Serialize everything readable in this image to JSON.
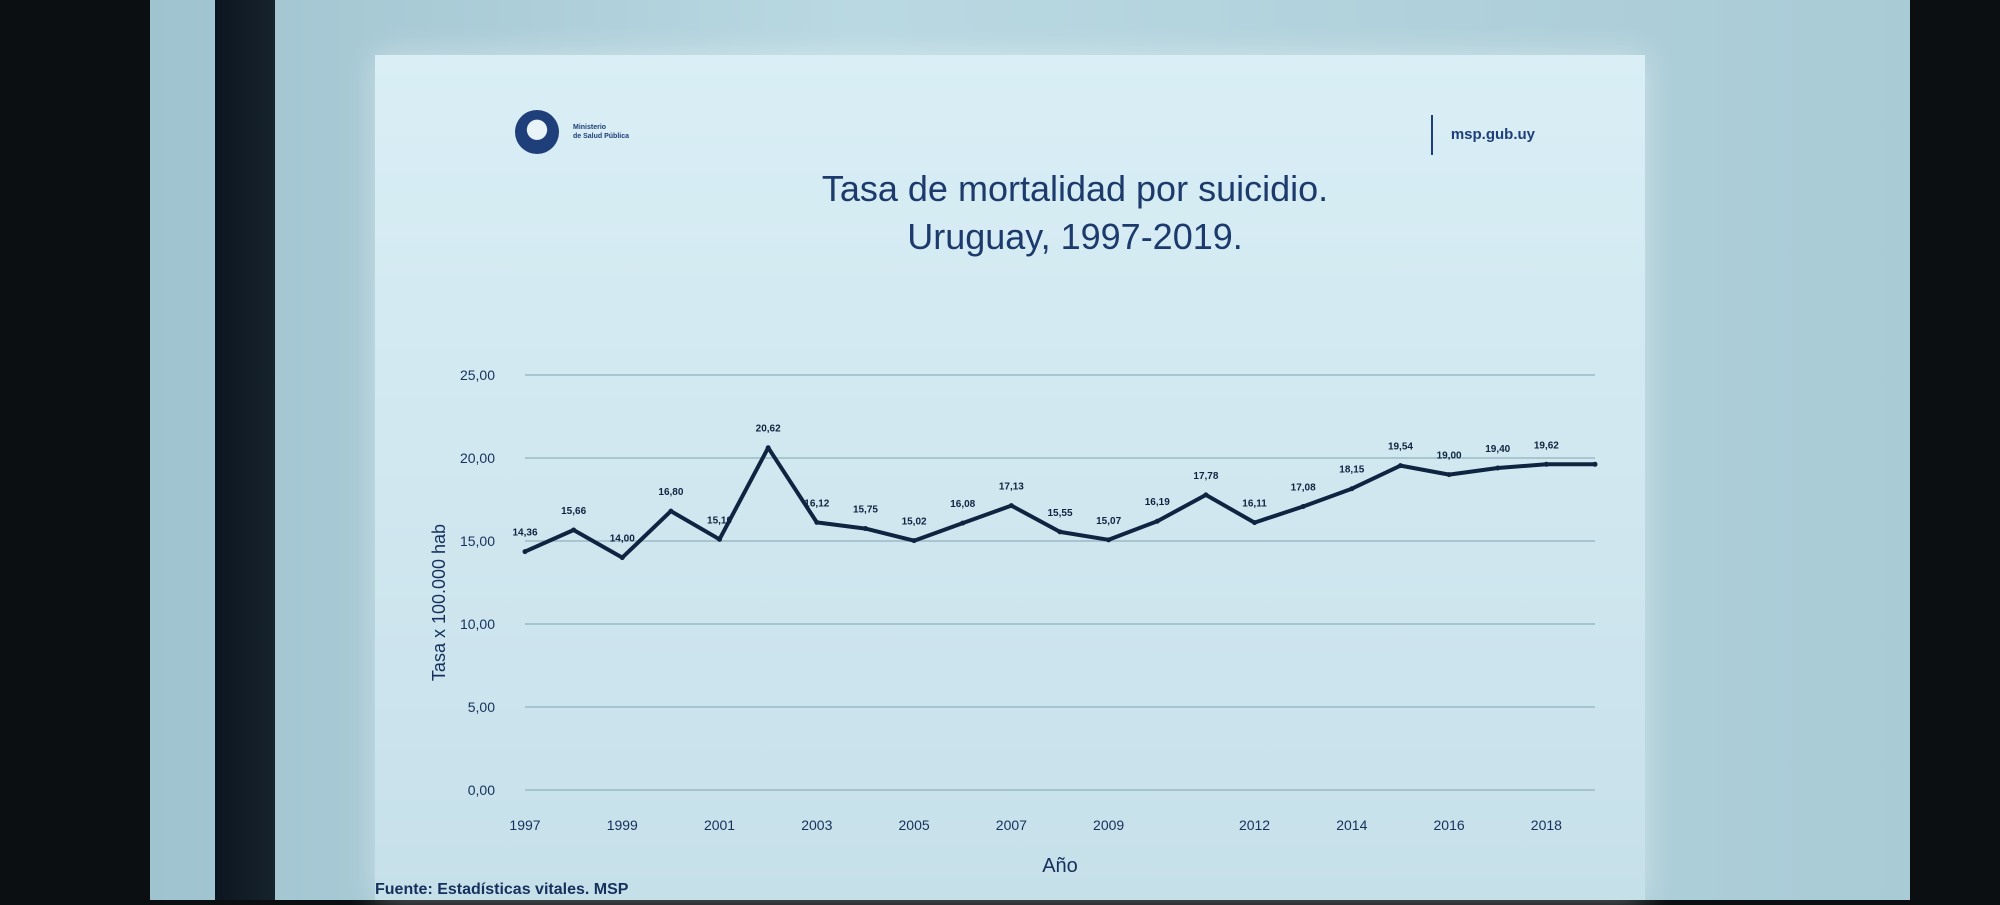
{
  "slide": {
    "logo_text": [
      "Ministerio",
      "de Salud Pública"
    ],
    "website": "msp.gub.uy",
    "source_text": "Fuente: Estadísticas vitales. MSP"
  },
  "chart_data": {
    "type": "line",
    "title": "Tasa de mortalidad por suicidio.",
    "subtitle": "Uruguay, 1997-2019.",
    "xlabel": "Año",
    "ylabel": "Tasa x 100.000 hab",
    "ylim": [
      0,
      25
    ],
    "yticks": [
      "0,00",
      "5,00",
      "10,00",
      "15,00",
      "20,00",
      "25,00"
    ],
    "xticks": [
      "1997",
      "1999",
      "2001",
      "2003",
      "2005",
      "2007",
      "2009",
      "2012",
      "2014",
      "2016",
      "2018"
    ],
    "grid": true,
    "color": "#0f2440",
    "series": [
      {
        "x": [
          1997,
          1998,
          1999,
          2000,
          2001,
          2002,
          2003,
          2004,
          2005,
          2006,
          2007,
          2008,
          2009,
          2010,
          2011,
          2012,
          2013,
          2014,
          2015,
          2016,
          2017,
          2018,
          2019
        ],
        "values": [
          14.36,
          15.66,
          14.0,
          16.8,
          15.1,
          20.62,
          16.12,
          15.75,
          15.02,
          16.08,
          17.13,
          15.55,
          15.07,
          16.19,
          17.78,
          16.11,
          17.08,
          18.15,
          19.54,
          19.0,
          19.4,
          19.62,
          19.62
        ],
        "labels": [
          "14,36",
          "15,66",
          "14,00",
          "16,80",
          "15,10",
          "20,62",
          "16,12",
          "15,75",
          "15,02",
          "16,08",
          "17,13",
          "15,55",
          "15,07",
          "16,19",
          "17,78",
          "16,11",
          "17,08",
          "18,15",
          "19,54",
          "19,00",
          "19,40",
          "19,62",
          ""
        ]
      }
    ]
  }
}
